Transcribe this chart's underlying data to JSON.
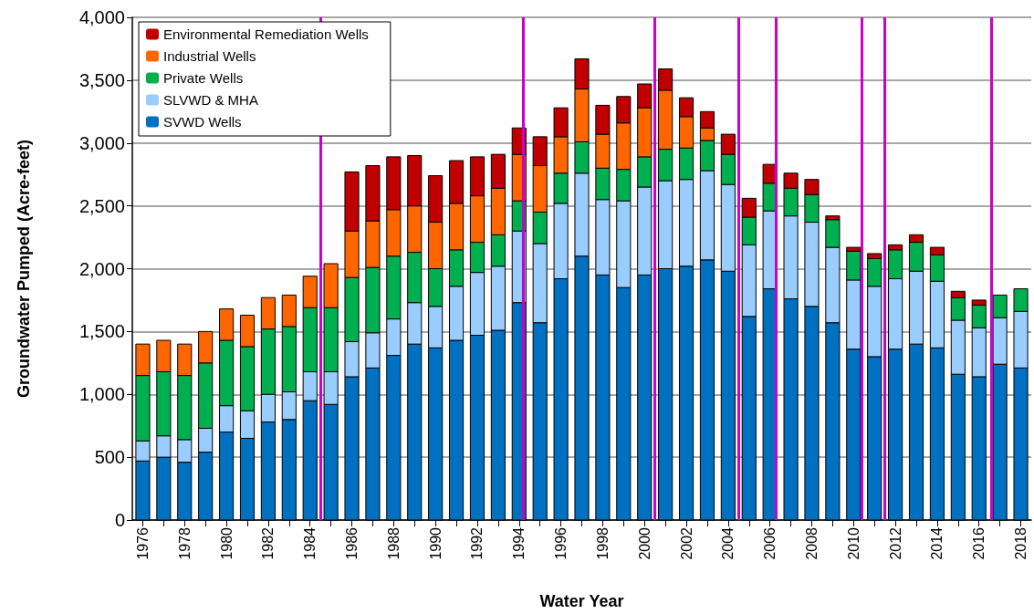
{
  "chart_data": {
    "type": "bar",
    "stacked": true,
    "xlabel": "Water Year",
    "ylabel": "Groundwater Pumped (Acre-feet)",
    "x": [
      1976,
      1977,
      1978,
      1979,
      1980,
      1981,
      1982,
      1983,
      1984,
      1985,
      1986,
      1987,
      1988,
      1989,
      1990,
      1991,
      1992,
      1993,
      1994,
      1995,
      1996,
      1997,
      1998,
      1999,
      2000,
      2001,
      2002,
      2003,
      2004,
      2005,
      2006,
      2007,
      2008,
      2009,
      2010,
      2011,
      2012,
      2013,
      2014,
      2015,
      2016,
      2017,
      2018
    ],
    "series": [
      {
        "name": "SVWD Wells",
        "color": "#0070c0",
        "values": [
          470,
          500,
          460,
          540,
          700,
          650,
          780,
          800,
          950,
          920,
          1140,
          1210,
          1310,
          1400,
          1370,
          1430,
          1470,
          1510,
          1730,
          1570,
          1920,
          2100,
          1950,
          1850,
          1950,
          2000,
          2020,
          2070,
          1980,
          1620,
          1840,
          1760,
          1700,
          1570,
          1360,
          1300,
          1360,
          1400,
          1370,
          1160,
          1140,
          1240,
          1210
        ]
      },
      {
        "name": "SLVWD & MHA",
        "color": "#99ccff",
        "values": [
          160,
          170,
          180,
          190,
          210,
          220,
          220,
          220,
          230,
          260,
          280,
          280,
          290,
          330,
          330,
          430,
          500,
          510,
          570,
          630,
          600,
          660,
          600,
          690,
          700,
          700,
          690,
          710,
          690,
          570,
          620,
          660,
          670,
          600,
          550,
          560,
          560,
          580,
          530,
          430,
          390,
          370,
          450
        ]
      },
      {
        "name": "Private Wells",
        "color": "#00b050",
        "values": [
          520,
          510,
          510,
          520,
          520,
          510,
          520,
          520,
          510,
          510,
          510,
          520,
          500,
          400,
          300,
          290,
          240,
          250,
          240,
          250,
          240,
          250,
          250,
          250,
          240,
          250,
          250,
          240,
          240,
          220,
          220,
          220,
          220,
          220,
          230,
          220,
          230,
          230,
          210,
          180,
          180,
          180,
          180
        ]
      },
      {
        "name": "Industrial Wells",
        "color": "#ff6600",
        "values": [
          250,
          250,
          250,
          250,
          250,
          250,
          250,
          250,
          250,
          350,
          370,
          370,
          370,
          370,
          370,
          370,
          370,
          370,
          370,
          370,
          290,
          420,
          270,
          370,
          390,
          470,
          250,
          100,
          null,
          null,
          null,
          null,
          null,
          null,
          null,
          null,
          null,
          null,
          null,
          null,
          null,
          null,
          null
        ]
      },
      {
        "name": "Environmental Remediation Wells",
        "color": "#c00000",
        "values": [
          null,
          null,
          null,
          null,
          null,
          null,
          null,
          null,
          null,
          null,
          470,
          440,
          420,
          400,
          370,
          340,
          310,
          270,
          210,
          230,
          230,
          240,
          230,
          210,
          190,
          170,
          150,
          130,
          160,
          150,
          150,
          120,
          120,
          30,
          30,
          40,
          40,
          60,
          60,
          50,
          40,
          null,
          null
        ]
      }
    ],
    "xlim": [
      1975.5,
      2018.5
    ],
    "xticks": [
      1976,
      {
        "value": 1977,
        "label": null
      },
      1978,
      {
        "value": 1979,
        "label": null
      },
      1980,
      {
        "value": 1981,
        "label": null
      },
      1982,
      {
        "value": 1983,
        "label": null
      },
      1984,
      {
        "value": 1985,
        "label": null
      },
      1986,
      {
        "value": 1987,
        "label": null
      },
      1988,
      {
        "value": 1989,
        "label": null
      },
      1990,
      {
        "value": 1991,
        "label": null
      },
      1992,
      {
        "value": 1993,
        "label": null
      },
      1994,
      {
        "value": 1995,
        "label": null
      },
      1996,
      {
        "value": 1997,
        "label": null
      },
      1998,
      {
        "value": 1999,
        "label": null
      },
      2000,
      {
        "value": 2001,
        "label": null
      },
      2002,
      {
        "value": 2003,
        "label": null
      },
      2004,
      {
        "value": 2005,
        "label": null
      },
      2006,
      {
        "value": 2007,
        "label": null
      },
      2008,
      {
        "value": 2009,
        "label": null
      },
      2010,
      {
        "value": 2011,
        "label": null
      },
      2012,
      {
        "value": 2013,
        "label": null
      },
      2014,
      {
        "value": 2015,
        "label": null
      },
      2016,
      {
        "value": 2017,
        "label": null
      },
      2018
    ],
    "ylim": [
      0,
      4000
    ],
    "yticks": [
      0,
      500,
      {
        "value": 1000,
        "label": "1,000"
      },
      {
        "value": 1500,
        "label": "1,500"
      },
      {
        "value": 2000,
        "label": "2,000"
      },
      {
        "value": 2500,
        "label": "2,500"
      },
      {
        "value": 3000,
        "label": "3,000"
      },
      {
        "value": 3500,
        "label": "3,500"
      },
      {
        "value": 4000,
        "label": "4,000"
      }
    ],
    "grid": "y",
    "legend": "top left",
    "ref_lines": [
      {
        "axis": "x",
        "value": 1984.5,
        "color": "#cc00cc"
      },
      {
        "axis": "x",
        "value": 1994.2,
        "color": "#cc00cc"
      },
      {
        "axis": "x",
        "value": 2000.5,
        "color": "#cc00cc"
      },
      {
        "axis": "x",
        "value": 2004.5,
        "color": "#cc00cc"
      },
      {
        "axis": "x",
        "value": 2006.3,
        "color": "#cc00cc"
      },
      {
        "axis": "x",
        "value": 2010.4,
        "color": "#cc00cc"
      },
      {
        "axis": "x",
        "value": 2011.5,
        "color": "#cc00cc"
      },
      {
        "axis": "x",
        "value": 2016.6,
        "color": "#cc00cc"
      }
    ]
  }
}
